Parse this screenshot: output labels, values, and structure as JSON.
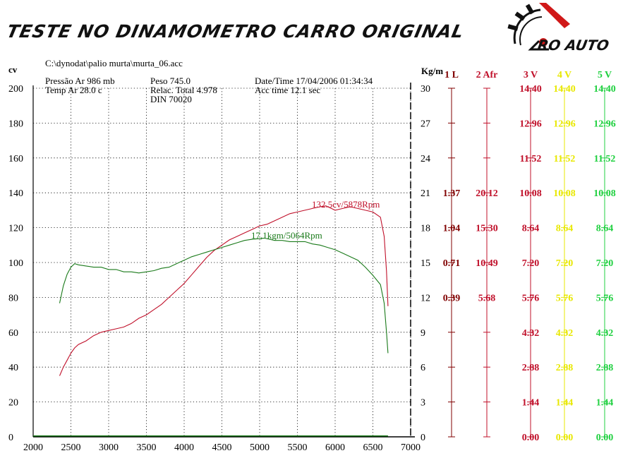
{
  "banner": {
    "title": "TESTE NO DINAMOMETRO CARRO ORIGINAL",
    "logo_text": "RO AUTO"
  },
  "header": {
    "file": "C:\\dynodat\\palio murta\\murta_06.acc",
    "pressao": "Pressão Ar   986 mb",
    "temp": "Temp Ar    28.0 c",
    "peso": "Peso      745.0",
    "relac": "Relac. Total 4.978",
    "din": "DIN 70020",
    "date": "Date/Time  17/04/2006 01:34:34",
    "acc": "Acc time   12.1 sec"
  },
  "chart_data": {
    "type": "line",
    "xlim": [
      2000,
      7000
    ],
    "xticks": [
      "2000",
      "2500",
      "3000",
      "3500",
      "4000",
      "4500",
      "5000",
      "5500",
      "6000",
      "6500",
      "7000"
    ],
    "left_axis": {
      "label": "cv",
      "ylim": [
        0,
        200
      ],
      "ticks": [
        "0",
        "20",
        "40",
        "60",
        "80",
        "100",
        "120",
        "140",
        "160",
        "180",
        "200"
      ]
    },
    "right_axis": {
      "label": "Kg/m",
      "ylim": [
        0,
        30
      ],
      "ticks": [
        "0",
        "3",
        "6",
        "9",
        "12",
        "15",
        "18",
        "21",
        "24",
        "27",
        "30"
      ]
    },
    "colors": {
      "power": "#c0102a",
      "torque": "#1a7a1a",
      "grid": "#000000"
    },
    "series": [
      {
        "name": "power",
        "annotation": "132.5cv/5878Rpm",
        "axis": "left",
        "points": [
          [
            2350,
            35
          ],
          [
            2400,
            40
          ],
          [
            2450,
            44
          ],
          [
            2500,
            48
          ],
          [
            2550,
            51
          ],
          [
            2600,
            53
          ],
          [
            2700,
            55
          ],
          [
            2800,
            58
          ],
          [
            2900,
            60
          ],
          [
            3000,
            61
          ],
          [
            3100,
            62
          ],
          [
            3200,
            63
          ],
          [
            3300,
            65
          ],
          [
            3400,
            68
          ],
          [
            3500,
            70
          ],
          [
            3600,
            73
          ],
          [
            3700,
            76
          ],
          [
            3800,
            80
          ],
          [
            3900,
            84
          ],
          [
            4000,
            88
          ],
          [
            4100,
            93
          ],
          [
            4200,
            98
          ],
          [
            4300,
            103
          ],
          [
            4400,
            107
          ],
          [
            4500,
            110
          ],
          [
            4600,
            113
          ],
          [
            4700,
            115
          ],
          [
            4800,
            117
          ],
          [
            4900,
            119
          ],
          [
            5000,
            121
          ],
          [
            5100,
            122
          ],
          [
            5200,
            124
          ],
          [
            5300,
            126
          ],
          [
            5400,
            128
          ],
          [
            5500,
            129
          ],
          [
            5600,
            130
          ],
          [
            5700,
            131
          ],
          [
            5800,
            132
          ],
          [
            5878,
            132.5
          ],
          [
            5950,
            131
          ],
          [
            6000,
            130
          ],
          [
            6100,
            131
          ],
          [
            6200,
            132
          ],
          [
            6300,
            131
          ],
          [
            6400,
            130
          ],
          [
            6500,
            129
          ],
          [
            6600,
            126
          ],
          [
            6650,
            115
          ],
          [
            6680,
            95
          ],
          [
            6700,
            75
          ]
        ]
      },
      {
        "name": "torque",
        "annotation": "17,1kgm/5064Rpm",
        "axis": "right",
        "points": [
          [
            2350,
            11.5
          ],
          [
            2400,
            13
          ],
          [
            2450,
            14
          ],
          [
            2500,
            14.6
          ],
          [
            2550,
            14.9
          ],
          [
            2600,
            14.8
          ],
          [
            2700,
            14.7
          ],
          [
            2800,
            14.6
          ],
          [
            2900,
            14.6
          ],
          [
            3000,
            14.4
          ],
          [
            3100,
            14.4
          ],
          [
            3200,
            14.2
          ],
          [
            3300,
            14.2
          ],
          [
            3400,
            14.1
          ],
          [
            3500,
            14.2
          ],
          [
            3600,
            14.3
          ],
          [
            3700,
            14.5
          ],
          [
            3800,
            14.6
          ],
          [
            3900,
            14.9
          ],
          [
            4000,
            15.2
          ],
          [
            4100,
            15.5
          ],
          [
            4200,
            15.7
          ],
          [
            4300,
            15.9
          ],
          [
            4400,
            16.1
          ],
          [
            4500,
            16.3
          ],
          [
            4600,
            16.5
          ],
          [
            4700,
            16.7
          ],
          [
            4800,
            16.9
          ],
          [
            4900,
            17.0
          ],
          [
            5064,
            17.1
          ],
          [
            5200,
            16.9
          ],
          [
            5300,
            16.9
          ],
          [
            5400,
            16.8
          ],
          [
            5500,
            16.8
          ],
          [
            5600,
            16.8
          ],
          [
            5700,
            16.6
          ],
          [
            5800,
            16.5
          ],
          [
            5900,
            16.3
          ],
          [
            6000,
            16.1
          ],
          [
            6100,
            15.8
          ],
          [
            6200,
            15.5
          ],
          [
            6300,
            15.2
          ],
          [
            6400,
            14.6
          ],
          [
            6500,
            13.9
          ],
          [
            6600,
            13.1
          ],
          [
            6650,
            11.5
          ],
          [
            6680,
            9
          ],
          [
            6700,
            7.2
          ]
        ]
      },
      {
        "name": "baseline",
        "axis": "left",
        "points": [
          [
            2000,
            0.5
          ],
          [
            6700,
            0.5
          ]
        ]
      }
    ]
  },
  "channels": [
    {
      "label": "1 L",
      "color": "#800000",
      "values": [
        "1.37",
        "1.04",
        "0.71",
        "0.39"
      ],
      "start_index": 3
    },
    {
      "label": "2 Afr",
      "color": "#c0102a",
      "values": [
        "20.12",
        "15.30",
        "10.49",
        "5.68"
      ],
      "start_index": 3
    },
    {
      "label": "3 V",
      "color": "#c0102a",
      "values": [
        "14.40",
        "12.96",
        "11.52",
        "10.08",
        "8.64",
        "7.20",
        "5.76",
        "4.32",
        "2.88",
        "1.44",
        "0.00"
      ],
      "start_index": 0
    },
    {
      "label": "4 V",
      "color": "#e8e800",
      "values": [
        "14.40",
        "12.96",
        "11.52",
        "10.08",
        "8.64",
        "7.20",
        "5.76",
        "4.32",
        "2.88",
        "1.44",
        "0.00"
      ],
      "start_index": 0
    },
    {
      "label": "5 V",
      "color": "#20d040",
      "values": [
        "14.40",
        "12.96",
        "11.52",
        "10.08",
        "8.64",
        "7.20",
        "5.76",
        "4.32",
        "2.88",
        "1.44",
        "0.00"
      ],
      "start_index": 0
    }
  ]
}
